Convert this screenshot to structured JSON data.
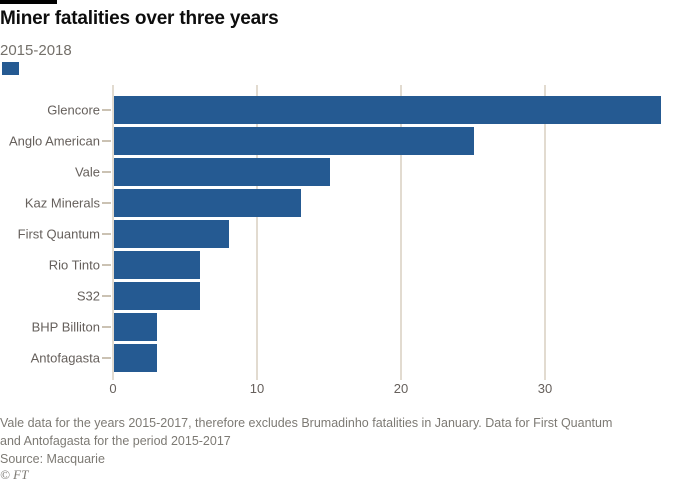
{
  "header": {
    "title": "Miner fatalities over three years",
    "subtitle": "2015-2018"
  },
  "chart_data": {
    "type": "bar",
    "orientation": "horizontal",
    "title": "Miner fatalities over three years",
    "subtitle": "2015-2018",
    "series_name": "2015-2018",
    "categories": [
      "Glencore",
      "Anglo American",
      "Vale",
      "Kaz Minerals",
      "First Quantum",
      "Rio Tinto",
      "S32",
      "BHP Billiton",
      "Antofagasta"
    ],
    "values": [
      38,
      25,
      15,
      13,
      8,
      6,
      6,
      3,
      3
    ],
    "x_ticks": [
      0,
      10,
      20,
      30
    ],
    "xlim": [
      0,
      39
    ],
    "xlabel": "",
    "ylabel": "",
    "grid": true,
    "legend_position": "top-left",
    "bar_color": "#255A92",
    "gridline_color": "#e2dbd0"
  },
  "footer": {
    "note_lines": [
      "Vale data for the years 2015-2017, therefore excludes Brumadinho fatalities in January. Data for First Quantum",
      "and Antofagasta for the period 2015-2017"
    ],
    "source": "Source: Macquarie",
    "credit": "© FT"
  }
}
